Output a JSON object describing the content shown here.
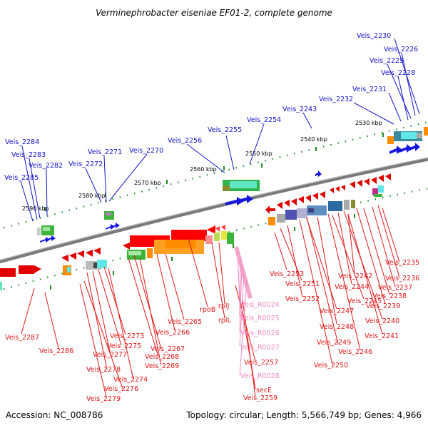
{
  "title": "Verminephrobacter eiseniae EF01-2, complete genome",
  "footer": {
    "accession": "Accession: NC_008786",
    "summary": "Topology: circular; Length: 5,566,749 bp; Genes: 4,966"
  },
  "colors": {
    "plus_label": "#1414c8",
    "minus_label": "#e01818",
    "rna_label": "#f08cc0",
    "backbone": "#7a7a7a",
    "tick": "#1e8c1e"
  },
  "scale_ticks": [
    "2590 kbp",
    "2580 kbp",
    "2570 kbp",
    "2560 kbp",
    "2550 kbp",
    "2540 kbp",
    "2530 kbp"
  ],
  "plus_labels": [
    "Veis_2230",
    "Veis_2226",
    "Veis_2229",
    "Veis_2228",
    "Veis_2231",
    "Veis_2232",
    "Veis_2243",
    "Veis_2254",
    "Veis_2255",
    "Veis_2256",
    "Veis_2284",
    "Veis_2283",
    "Veis_2271",
    "Veis_2270",
    "Veis_2282",
    "Veis_2272",
    "Veis_2285"
  ],
  "minus_labels": [
    "Veis_2235",
    "Veis_2253",
    "Veis_2242",
    "Veis_2236",
    "Veis_2251",
    "Veis_2244",
    "Veis_2237",
    "Veis_2238",
    "Veis_2252",
    "Veis_2245",
    "Veis_2239",
    "Veis_2247",
    "Veis_2240",
    "Veis_2248",
    "Veis_2241",
    "rpoB",
    "rplJ",
    "rplL",
    "Veis_2265",
    "Veis_2266",
    "Veis_2273",
    "Veis_2287",
    "Veis_2286",
    "Veis_2275",
    "Veis_2277",
    "Veis_2267",
    "Veis_2268",
    "Veis_2269",
    "Veis_2278",
    "Veis_2274",
    "Veis_2276",
    "Veis_2279",
    "Veis_2249",
    "Veis_2246",
    "Veis_2250",
    "Veis_2257",
    "secE",
    "Veis_2259"
  ],
  "rna_labels": [
    "Veis_R0024",
    "Veis_R0025",
    "Veis_R0026",
    "Veis_R0027",
    "Veis_R0028"
  ]
}
